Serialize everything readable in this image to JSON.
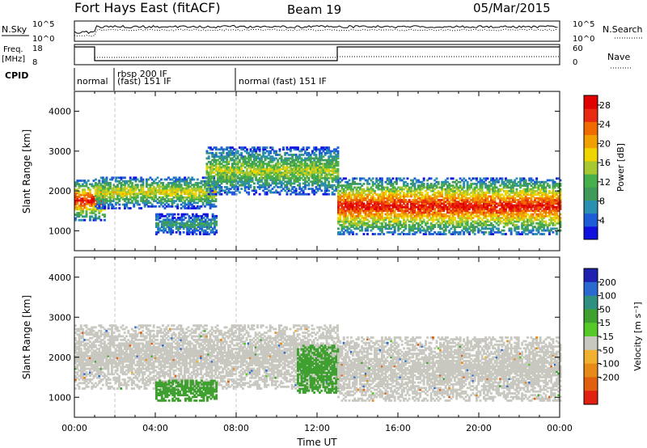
{
  "header": {
    "title": "Fort Hays East (fitACF)",
    "beam": "Beam 19",
    "date": "05/Mar/2015"
  },
  "summary": {
    "nsky_label": "N.Sky",
    "nsearch_label": "N.Search",
    "freq_label": "Freq.",
    "freq_unit": "[MHz]",
    "nave_label": "Nave",
    "cpid_label": "CPID",
    "nsky_ticks": [
      "10^5",
      "10^0"
    ],
    "nsearch_ticks": [
      "10^5",
      "10^0"
    ],
    "freq_ticks": [
      "18",
      "8"
    ],
    "nave_ticks": [
      "60",
      "0"
    ]
  },
  "cpid_segments": [
    {
      "label": "normal",
      "start_h": 0.0,
      "end_h": 2.0
    },
    {
      "label": "rbsp 200 IF",
      "start_h": 2.0,
      "end_h": 8.0
    },
    {
      "label": "(fast) 151 IF",
      "start_h": 2.0,
      "end_h": 8.0
    },
    {
      "label": "normal (fast) 151 IF",
      "start_h": 8.0,
      "end_h": 24.0
    }
  ],
  "colors": {
    "power": [
      "#1010e0",
      "#1e5bd6",
      "#2a8fb0",
      "#3f9a5c",
      "#47b04a",
      "#a8c832",
      "#f0d400",
      "#f0a000",
      "#f06a00",
      "#e82a10",
      "#e00000"
    ],
    "velocity_grey": "#c8c8c0",
    "velocity": [
      "#2020b0",
      "#2a6ad0",
      "#2f8f80",
      "#3fa030",
      "#56c828",
      "#c8c8c0",
      "#f0b030",
      "#e88a18",
      "#e06010",
      "#e02010"
    ]
  },
  "chart_data": [
    {
      "type": "heatmap",
      "name": "power",
      "xlabel": "",
      "ylabel": "Slant Range [km]",
      "xlim": [
        0,
        24
      ],
      "ylim": [
        500,
        4500
      ],
      "yticks": [
        "1000",
        "2000",
        "3000",
        "4000"
      ],
      "colorbar": {
        "label": "Power [dB]",
        "ticks": [
          "4",
          "8",
          "12",
          "16",
          "20",
          "24",
          "28"
        ],
        "range": [
          0,
          30
        ]
      },
      "features": [
        {
          "t0": 0.0,
          "t1": 1.5,
          "r_center": 1750,
          "r_width": 500,
          "peak_db": 28
        },
        {
          "t0": 1.0,
          "t1": 7.0,
          "r_center": 1950,
          "r_width": 400,
          "peak_db": 18
        },
        {
          "t0": 4.0,
          "t1": 7.0,
          "r_center": 1150,
          "r_width": 250,
          "peak_db": 10
        },
        {
          "t0": 6.5,
          "t1": 13.0,
          "r_center": 2500,
          "r_width": 600,
          "peak_db": 16
        },
        {
          "t0": 13.0,
          "t1": 24.0,
          "r_center": 1600,
          "r_width": 700,
          "peak_db": 28
        }
      ]
    },
    {
      "type": "heatmap",
      "name": "velocity",
      "xlabel": "Time UT",
      "ylabel": "Slant Range [km]",
      "xlim": [
        0,
        24
      ],
      "ylim": [
        500,
        4500
      ],
      "xticks": [
        "00:00",
        "04:00",
        "08:00",
        "12:00",
        "16:00",
        "20:00",
        "00:00"
      ],
      "yticks": [
        "1000",
        "2000",
        "3000",
        "4000"
      ],
      "colorbar": {
        "label": "Velocity [m s⁻¹]",
        "ticks": [
          "200",
          "100",
          "50",
          "15",
          "-15",
          "-50",
          "-100",
          "-200"
        ]
      },
      "features": [
        {
          "t0": 0.0,
          "t1": 13.0,
          "r_center": 2000,
          "r_width": 800,
          "v_ms": 0
        },
        {
          "t0": 4.0,
          "t1": 7.0,
          "r_center": 1150,
          "r_width": 250,
          "v_ms": 50
        },
        {
          "t0": 11.0,
          "t1": 13.0,
          "r_center": 1700,
          "r_width": 600,
          "v_ms": 60
        },
        {
          "t0": 13.0,
          "t1": 24.0,
          "r_center": 1700,
          "r_width": 800,
          "v_ms": 0
        }
      ]
    }
  ]
}
